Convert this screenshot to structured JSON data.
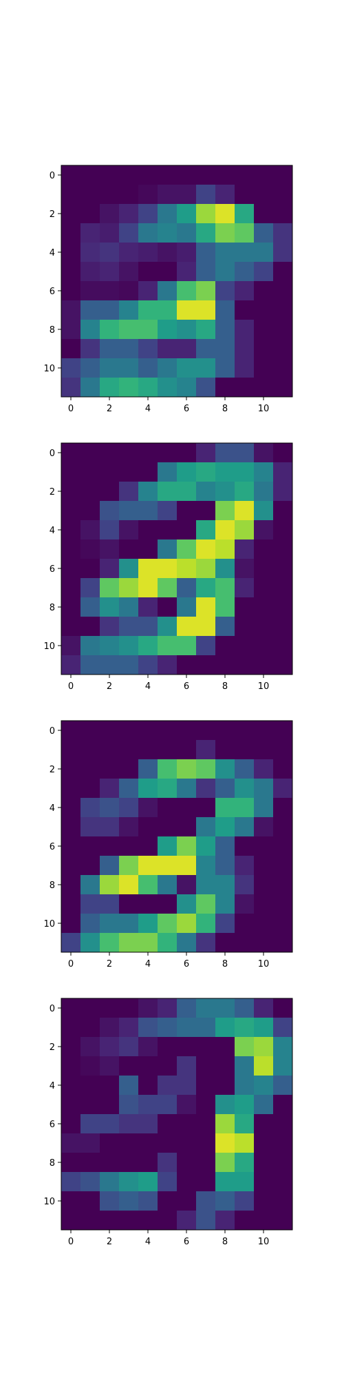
{
  "chart_data": [
    {
      "type": "heatmap",
      "colormap": "viridis",
      "value_range": [
        0,
        1
      ],
      "xlim": [
        -0.5,
        11.5
      ],
      "ylim": [
        11.5,
        -0.5
      ],
      "x_ticks": [
        "0",
        "2",
        "4",
        "6",
        "8",
        "10"
      ],
      "y_ticks": [
        "0",
        "2",
        "4",
        "6",
        "8",
        "10"
      ],
      "grid": false,
      "values": [
        [
          0.0,
          0.0,
          0.0,
          0.0,
          0.0,
          0.0,
          0.0,
          0.0,
          0.0,
          0.0,
          0.0,
          0.0
        ],
        [
          0.0,
          0.0,
          0.0,
          0.0,
          0.02,
          0.05,
          0.05,
          0.2,
          0.1,
          0.0,
          0.0,
          0.0
        ],
        [
          0.0,
          0.0,
          0.05,
          0.1,
          0.2,
          0.4,
          0.55,
          0.85,
          0.95,
          0.6,
          0.0,
          0.0
        ],
        [
          0.0,
          0.1,
          0.08,
          0.2,
          0.4,
          0.45,
          0.4,
          0.6,
          0.8,
          0.75,
          0.3,
          0.15
        ],
        [
          0.0,
          0.12,
          0.15,
          0.1,
          0.08,
          0.05,
          0.08,
          0.3,
          0.4,
          0.4,
          0.4,
          0.15
        ],
        [
          0.0,
          0.08,
          0.1,
          0.05,
          0.0,
          0.0,
          0.1,
          0.3,
          0.4,
          0.3,
          0.2,
          0.0
        ],
        [
          0.0,
          0.03,
          0.03,
          0.02,
          0.1,
          0.4,
          0.7,
          0.8,
          0.2,
          0.1,
          0.0,
          0.0
        ],
        [
          0.05,
          0.3,
          0.3,
          0.45,
          0.65,
          0.65,
          0.95,
          0.95,
          0.3,
          0.0,
          0.0,
          0.0
        ],
        [
          0.05,
          0.45,
          0.65,
          0.7,
          0.7,
          0.55,
          0.5,
          0.6,
          0.3,
          0.1,
          0.0,
          0.0
        ],
        [
          0.0,
          0.15,
          0.3,
          0.3,
          0.2,
          0.1,
          0.1,
          0.3,
          0.3,
          0.1,
          0.0,
          0.0
        ],
        [
          0.2,
          0.3,
          0.4,
          0.4,
          0.3,
          0.4,
          0.5,
          0.5,
          0.3,
          0.1,
          0.0,
          0.0
        ],
        [
          0.15,
          0.4,
          0.6,
          0.65,
          0.6,
          0.5,
          0.45,
          0.25,
          0.0,
          0.0,
          0.0,
          0.0
        ]
      ]
    },
    {
      "type": "heatmap",
      "colormap": "viridis",
      "value_range": [
        0,
        1
      ],
      "xlim": [
        -0.5,
        11.5
      ],
      "ylim": [
        11.5,
        -0.5
      ],
      "x_ticks": [
        "0",
        "2",
        "4",
        "6",
        "8",
        "10"
      ],
      "y_ticks": [
        "0",
        "2",
        "4",
        "6",
        "8",
        "10"
      ],
      "grid": false,
      "values": [
        [
          0.0,
          0.0,
          0.0,
          0.0,
          0.0,
          0.0,
          0.0,
          0.1,
          0.25,
          0.25,
          0.05,
          0.0
        ],
        [
          0.0,
          0.0,
          0.0,
          0.0,
          0.0,
          0.4,
          0.55,
          0.6,
          0.55,
          0.55,
          0.45,
          0.1
        ],
        [
          0.0,
          0.0,
          0.0,
          0.15,
          0.45,
          0.6,
          0.6,
          0.45,
          0.5,
          0.6,
          0.4,
          0.1
        ],
        [
          0.0,
          0.0,
          0.25,
          0.3,
          0.3,
          0.2,
          0.0,
          0.0,
          0.8,
          0.95,
          0.5,
          0.0
        ],
        [
          0.0,
          0.05,
          0.2,
          0.05,
          0.0,
          0.0,
          0.0,
          0.6,
          0.95,
          0.85,
          0.05,
          0.0
        ],
        [
          0.0,
          0.02,
          0.05,
          0.0,
          0.0,
          0.4,
          0.75,
          0.95,
          0.9,
          0.1,
          0.0,
          0.0
        ],
        [
          0.0,
          0.0,
          0.1,
          0.5,
          0.95,
          0.95,
          0.9,
          0.85,
          0.5,
          0.05,
          0.0,
          0.0
        ],
        [
          0.0,
          0.2,
          0.75,
          0.85,
          0.95,
          0.75,
          0.3,
          0.6,
          0.7,
          0.1,
          0.0,
          0.0
        ],
        [
          0.0,
          0.3,
          0.5,
          0.4,
          0.1,
          0.0,
          0.4,
          0.95,
          0.7,
          0.0,
          0.0,
          0.0
        ],
        [
          0.0,
          0.0,
          0.15,
          0.25,
          0.25,
          0.5,
          0.95,
          0.95,
          0.3,
          0.0,
          0.0,
          0.0
        ],
        [
          0.05,
          0.4,
          0.45,
          0.5,
          0.6,
          0.7,
          0.7,
          0.2,
          0.0,
          0.0,
          0.0,
          0.0
        ],
        [
          0.1,
          0.3,
          0.3,
          0.3,
          0.2,
          0.1,
          0.0,
          0.0,
          0.0,
          0.0,
          0.0,
          0.0
        ]
      ]
    },
    {
      "type": "heatmap",
      "colormap": "viridis",
      "value_range": [
        0,
        1
      ],
      "xlim": [
        -0.5,
        11.5
      ],
      "ylim": [
        11.5,
        -0.5
      ],
      "x_ticks": [
        "0",
        "2",
        "4",
        "6",
        "8",
        "10"
      ],
      "y_ticks": [
        "0",
        "2",
        "4",
        "6",
        "8",
        "10"
      ],
      "grid": false,
      "values": [
        [
          0.0,
          0.0,
          0.0,
          0.0,
          0.0,
          0.0,
          0.0,
          0.0,
          0.0,
          0.0,
          0.0,
          0.0
        ],
        [
          0.0,
          0.0,
          0.0,
          0.0,
          0.0,
          0.0,
          0.0,
          0.1,
          0.0,
          0.0,
          0.0,
          0.0
        ],
        [
          0.0,
          0.0,
          0.0,
          0.0,
          0.3,
          0.7,
          0.8,
          0.75,
          0.5,
          0.3,
          0.1,
          0.0
        ],
        [
          0.0,
          0.0,
          0.1,
          0.3,
          0.55,
          0.6,
          0.4,
          0.15,
          0.3,
          0.5,
          0.4,
          0.1
        ],
        [
          0.0,
          0.2,
          0.25,
          0.2,
          0.05,
          0.0,
          0.0,
          0.0,
          0.65,
          0.65,
          0.4,
          0.0
        ],
        [
          0.0,
          0.15,
          0.15,
          0.05,
          0.0,
          0.0,
          0.0,
          0.4,
          0.55,
          0.4,
          0.05,
          0.0
        ],
        [
          0.0,
          0.0,
          0.0,
          0.0,
          0.0,
          0.55,
          0.8,
          0.55,
          0.3,
          0.0,
          0.0,
          0.0
        ],
        [
          0.0,
          0.0,
          0.3,
          0.8,
          0.95,
          0.95,
          0.95,
          0.45,
          0.3,
          0.1,
          0.0,
          0.0
        ],
        [
          0.0,
          0.4,
          0.85,
          0.95,
          0.7,
          0.4,
          0.05,
          0.45,
          0.45,
          0.15,
          0.0,
          0.0
        ],
        [
          0.0,
          0.2,
          0.2,
          0.0,
          0.0,
          0.0,
          0.5,
          0.75,
          0.45,
          0.05,
          0.0,
          0.0
        ],
        [
          0.0,
          0.3,
          0.4,
          0.4,
          0.55,
          0.75,
          0.85,
          0.65,
          0.2,
          0.0,
          0.0,
          0.0
        ],
        [
          0.2,
          0.5,
          0.7,
          0.8,
          0.8,
          0.65,
          0.4,
          0.15,
          0.0,
          0.0,
          0.0,
          0.0
        ]
      ]
    },
    {
      "type": "heatmap",
      "colormap": "viridis",
      "value_range": [
        0,
        1
      ],
      "xlim": [
        -0.5,
        11.5
      ],
      "ylim": [
        11.5,
        -0.5
      ],
      "x_ticks": [
        "0",
        "2",
        "4",
        "6",
        "8",
        "10"
      ],
      "y_ticks": [
        "0",
        "2",
        "4",
        "6",
        "8",
        "10"
      ],
      "grid": false,
      "values": [
        [
          0.0,
          0.0,
          0.0,
          0.0,
          0.05,
          0.1,
          0.3,
          0.4,
          0.4,
          0.3,
          0.1,
          0.0
        ],
        [
          0.0,
          0.0,
          0.05,
          0.1,
          0.25,
          0.3,
          0.35,
          0.35,
          0.55,
          0.6,
          0.55,
          0.2
        ],
        [
          0.0,
          0.05,
          0.1,
          0.15,
          0.05,
          0.0,
          0.0,
          0.0,
          0.0,
          0.8,
          0.85,
          0.45
        ],
        [
          0.0,
          0.02,
          0.05,
          0.0,
          0.0,
          0.0,
          0.15,
          0.0,
          0.0,
          0.4,
          0.9,
          0.45
        ],
        [
          0.0,
          0.0,
          0.0,
          0.3,
          0.0,
          0.15,
          0.15,
          0.0,
          0.0,
          0.4,
          0.45,
          0.3
        ],
        [
          0.0,
          0.0,
          0.0,
          0.25,
          0.2,
          0.2,
          0.05,
          0.0,
          0.5,
          0.55,
          0.35,
          0.0
        ],
        [
          0.0,
          0.2,
          0.2,
          0.15,
          0.15,
          0.0,
          0.0,
          0.0,
          0.85,
          0.6,
          0.0,
          0.0
        ],
        [
          0.05,
          0.05,
          0.0,
          0.0,
          0.0,
          0.0,
          0.0,
          0.0,
          0.95,
          0.9,
          0.0,
          0.0
        ],
        [
          0.0,
          0.0,
          0.0,
          0.0,
          0.0,
          0.15,
          0.0,
          0.0,
          0.8,
          0.6,
          0.0,
          0.0
        ],
        [
          0.2,
          0.25,
          0.4,
          0.5,
          0.55,
          0.2,
          0.0,
          0.0,
          0.55,
          0.55,
          0.0,
          0.0
        ],
        [
          0.0,
          0.0,
          0.25,
          0.3,
          0.25,
          0.0,
          0.0,
          0.25,
          0.3,
          0.2,
          0.0,
          0.0
        ],
        [
          0.0,
          0.0,
          0.0,
          0.0,
          0.0,
          0.0,
          0.1,
          0.25,
          0.1,
          0.0,
          0.0,
          0.0
        ]
      ]
    }
  ]
}
